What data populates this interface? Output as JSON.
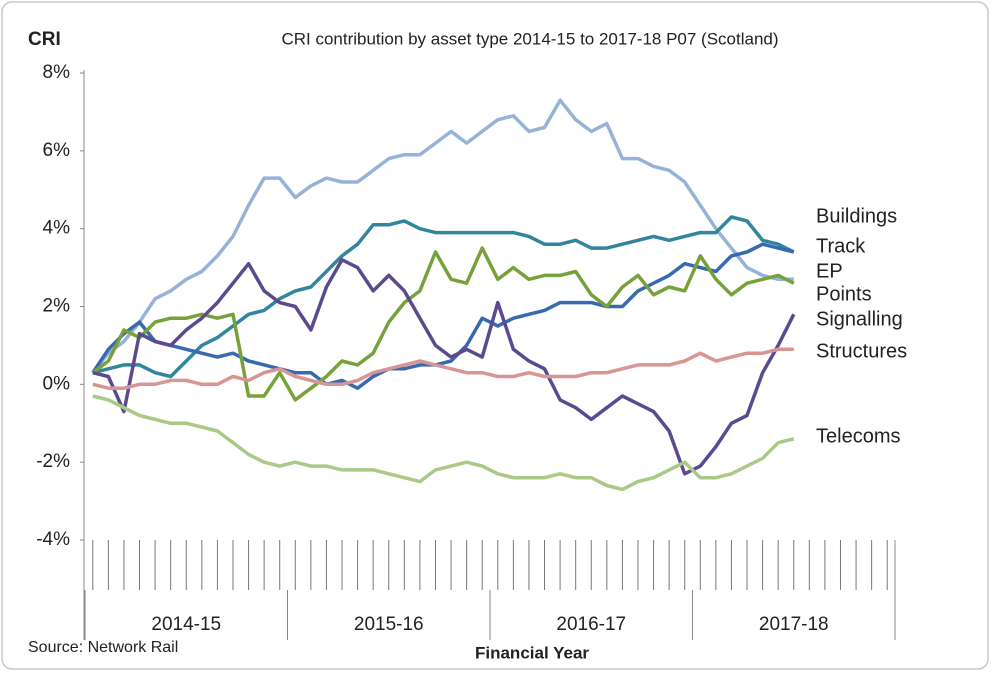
{
  "chart_data": {
    "type": "line",
    "title": "CRI contribution by asset type 2014-15 to 2017-18 P07 (Scotland)",
    "y_label": "CRI",
    "x_label": "Financial Year",
    "source": "Source: Network Rail",
    "x_groups": [
      "2014-15",
      "2015-16",
      "2016-17",
      "2017-18"
    ],
    "categories": [
      null,
      null,
      null,
      null,
      null,
      null,
      null,
      null,
      null,
      null,
      null,
      null,
      null,
      null,
      null,
      null,
      null,
      null,
      null,
      null,
      null,
      null,
      null,
      null,
      null,
      null,
      null,
      null,
      null,
      null,
      null,
      null,
      null,
      null,
      null,
      null,
      null,
      null,
      null,
      null,
      null,
      null,
      null,
      null,
      null,
      null,
      null,
      null,
      null,
      null,
      null,
      null
    ],
    "ylim": [
      -4,
      8
    ],
    "yticks": [
      {
        "value": -4,
        "label": "-4%"
      },
      {
        "value": -2,
        "label": "-2%"
      },
      {
        "value": 0,
        "label": "0%"
      },
      {
        "value": 2,
        "label": "2%"
      },
      {
        "value": 4,
        "label": "4%"
      },
      {
        "value": 6,
        "label": "6%"
      },
      {
        "value": 8,
        "label": "8%"
      }
    ],
    "grid": false,
    "series": [
      {
        "name": "Buildings",
        "color": "#95b3d7",
        "values": [
          0.3,
          0.8,
          1.1,
          1.6,
          2.2,
          2.4,
          2.7,
          2.9,
          3.3,
          3.8,
          4.6,
          5.3,
          5.3,
          4.8,
          5.1,
          5.3,
          5.2,
          5.2,
          5.5,
          5.8,
          5.9,
          5.9,
          6.2,
          6.5,
          6.2,
          6.5,
          6.8,
          6.9,
          6.5,
          6.6,
          7.3,
          6.8,
          6.5,
          6.7,
          5.8,
          5.8,
          5.6,
          5.5,
          5.2,
          4.6,
          4.0,
          3.5,
          3.0,
          2.8,
          2.7,
          2.7,
          null,
          null,
          null,
          null,
          null,
          null
        ]
      },
      {
        "name": "Track",
        "color": "#31859c",
        "values": [
          0.3,
          0.4,
          0.5,
          0.5,
          0.3,
          0.2,
          0.6,
          1.0,
          1.2,
          1.5,
          1.8,
          1.9,
          2.2,
          2.4,
          2.5,
          2.9,
          3.3,
          3.6,
          4.1,
          4.1,
          4.2,
          4.0,
          3.9,
          3.9,
          3.9,
          3.9,
          3.9,
          3.9,
          3.8,
          3.6,
          3.6,
          3.7,
          3.5,
          3.5,
          3.6,
          3.7,
          3.8,
          3.7,
          3.8,
          3.9,
          3.9,
          4.3,
          4.2,
          3.7,
          3.6,
          3.4,
          null,
          null,
          null,
          null,
          null,
          null
        ]
      },
      {
        "name": "EP",
        "color": "#376ab0",
        "values": [
          0.3,
          0.9,
          1.3,
          1.6,
          1.1,
          1.0,
          0.9,
          0.8,
          0.7,
          0.8,
          0.6,
          0.5,
          0.4,
          0.3,
          0.3,
          0.0,
          0.1,
          -0.1,
          0.2,
          0.4,
          0.4,
          0.5,
          0.5,
          0.6,
          1.0,
          1.7,
          1.5,
          1.7,
          1.8,
          1.9,
          2.1,
          2.1,
          2.1,
          2.0,
          2.0,
          2.4,
          2.6,
          2.8,
          3.1,
          3.0,
          2.9,
          3.3,
          3.4,
          3.6,
          3.5,
          3.4,
          null,
          null,
          null,
          null,
          null,
          null
        ]
      },
      {
        "name": "Points",
        "color": "#77a13a",
        "values": [
          0.3,
          0.6,
          1.4,
          1.2,
          1.6,
          1.7,
          1.7,
          1.8,
          1.7,
          1.8,
          -0.3,
          -0.3,
          0.3,
          -0.4,
          -0.1,
          0.2,
          0.6,
          0.5,
          0.8,
          1.6,
          2.1,
          2.4,
          3.4,
          2.7,
          2.6,
          3.5,
          2.7,
          3.0,
          2.7,
          2.8,
          2.8,
          2.9,
          2.3,
          2.0,
          2.5,
          2.8,
          2.3,
          2.5,
          2.4,
          3.3,
          2.7,
          2.3,
          2.6,
          2.7,
          2.8,
          2.6,
          null,
          null,
          null,
          null,
          null,
          null
        ]
      },
      {
        "name": "Signalling",
        "color": "#5b4a8f",
        "values": [
          0.3,
          0.2,
          -0.7,
          1.3,
          1.1,
          1.0,
          1.4,
          1.7,
          2.1,
          2.6,
          3.1,
          2.4,
          2.1,
          2.0,
          1.4,
          2.5,
          3.2,
          3.0,
          2.4,
          2.8,
          2.4,
          1.7,
          1.0,
          0.7,
          0.9,
          0.7,
          2.1,
          0.9,
          0.6,
          0.4,
          -0.4,
          -0.6,
          -0.9,
          -0.6,
          -0.3,
          -0.5,
          -0.7,
          -1.2,
          -2.3,
          -2.1,
          -1.6,
          -1.0,
          -0.8,
          0.3,
          1.0,
          1.8,
          null,
          null,
          null,
          null,
          null,
          null
        ]
      },
      {
        "name": "Structures",
        "color": "#d99594",
        "values": [
          0.0,
          -0.1,
          -0.1,
          0.0,
          0.0,
          0.1,
          0.1,
          0.0,
          0.0,
          0.2,
          0.1,
          0.3,
          0.4,
          0.2,
          0.1,
          0.0,
          0.0,
          0.1,
          0.3,
          0.4,
          0.5,
          0.6,
          0.5,
          0.4,
          0.3,
          0.3,
          0.2,
          0.2,
          0.3,
          0.2,
          0.2,
          0.2,
          0.3,
          0.3,
          0.4,
          0.5,
          0.5,
          0.5,
          0.6,
          0.8,
          0.6,
          0.7,
          0.8,
          0.8,
          0.9,
          0.9,
          null,
          null,
          null,
          null,
          null,
          null
        ]
      },
      {
        "name": "Telecoms",
        "color": "#a9c986",
        "values": [
          -0.3,
          -0.4,
          -0.6,
          -0.8,
          -0.9,
          -1.0,
          -1.0,
          -1.1,
          -1.2,
          -1.5,
          -1.8,
          -2.0,
          -2.1,
          -2.0,
          -2.1,
          -2.1,
          -2.2,
          -2.2,
          -2.2,
          -2.3,
          -2.4,
          -2.5,
          -2.2,
          -2.1,
          -2.0,
          -2.1,
          -2.3,
          -2.4,
          -2.4,
          -2.4,
          -2.3,
          -2.4,
          -2.4,
          -2.6,
          -2.7,
          -2.5,
          -2.4,
          -2.2,
          -2.0,
          -2.4,
          -2.4,
          -2.3,
          -2.1,
          -1.9,
          -1.5,
          -1.4,
          null,
          null,
          null,
          null,
          null,
          null
        ]
      }
    ]
  }
}
